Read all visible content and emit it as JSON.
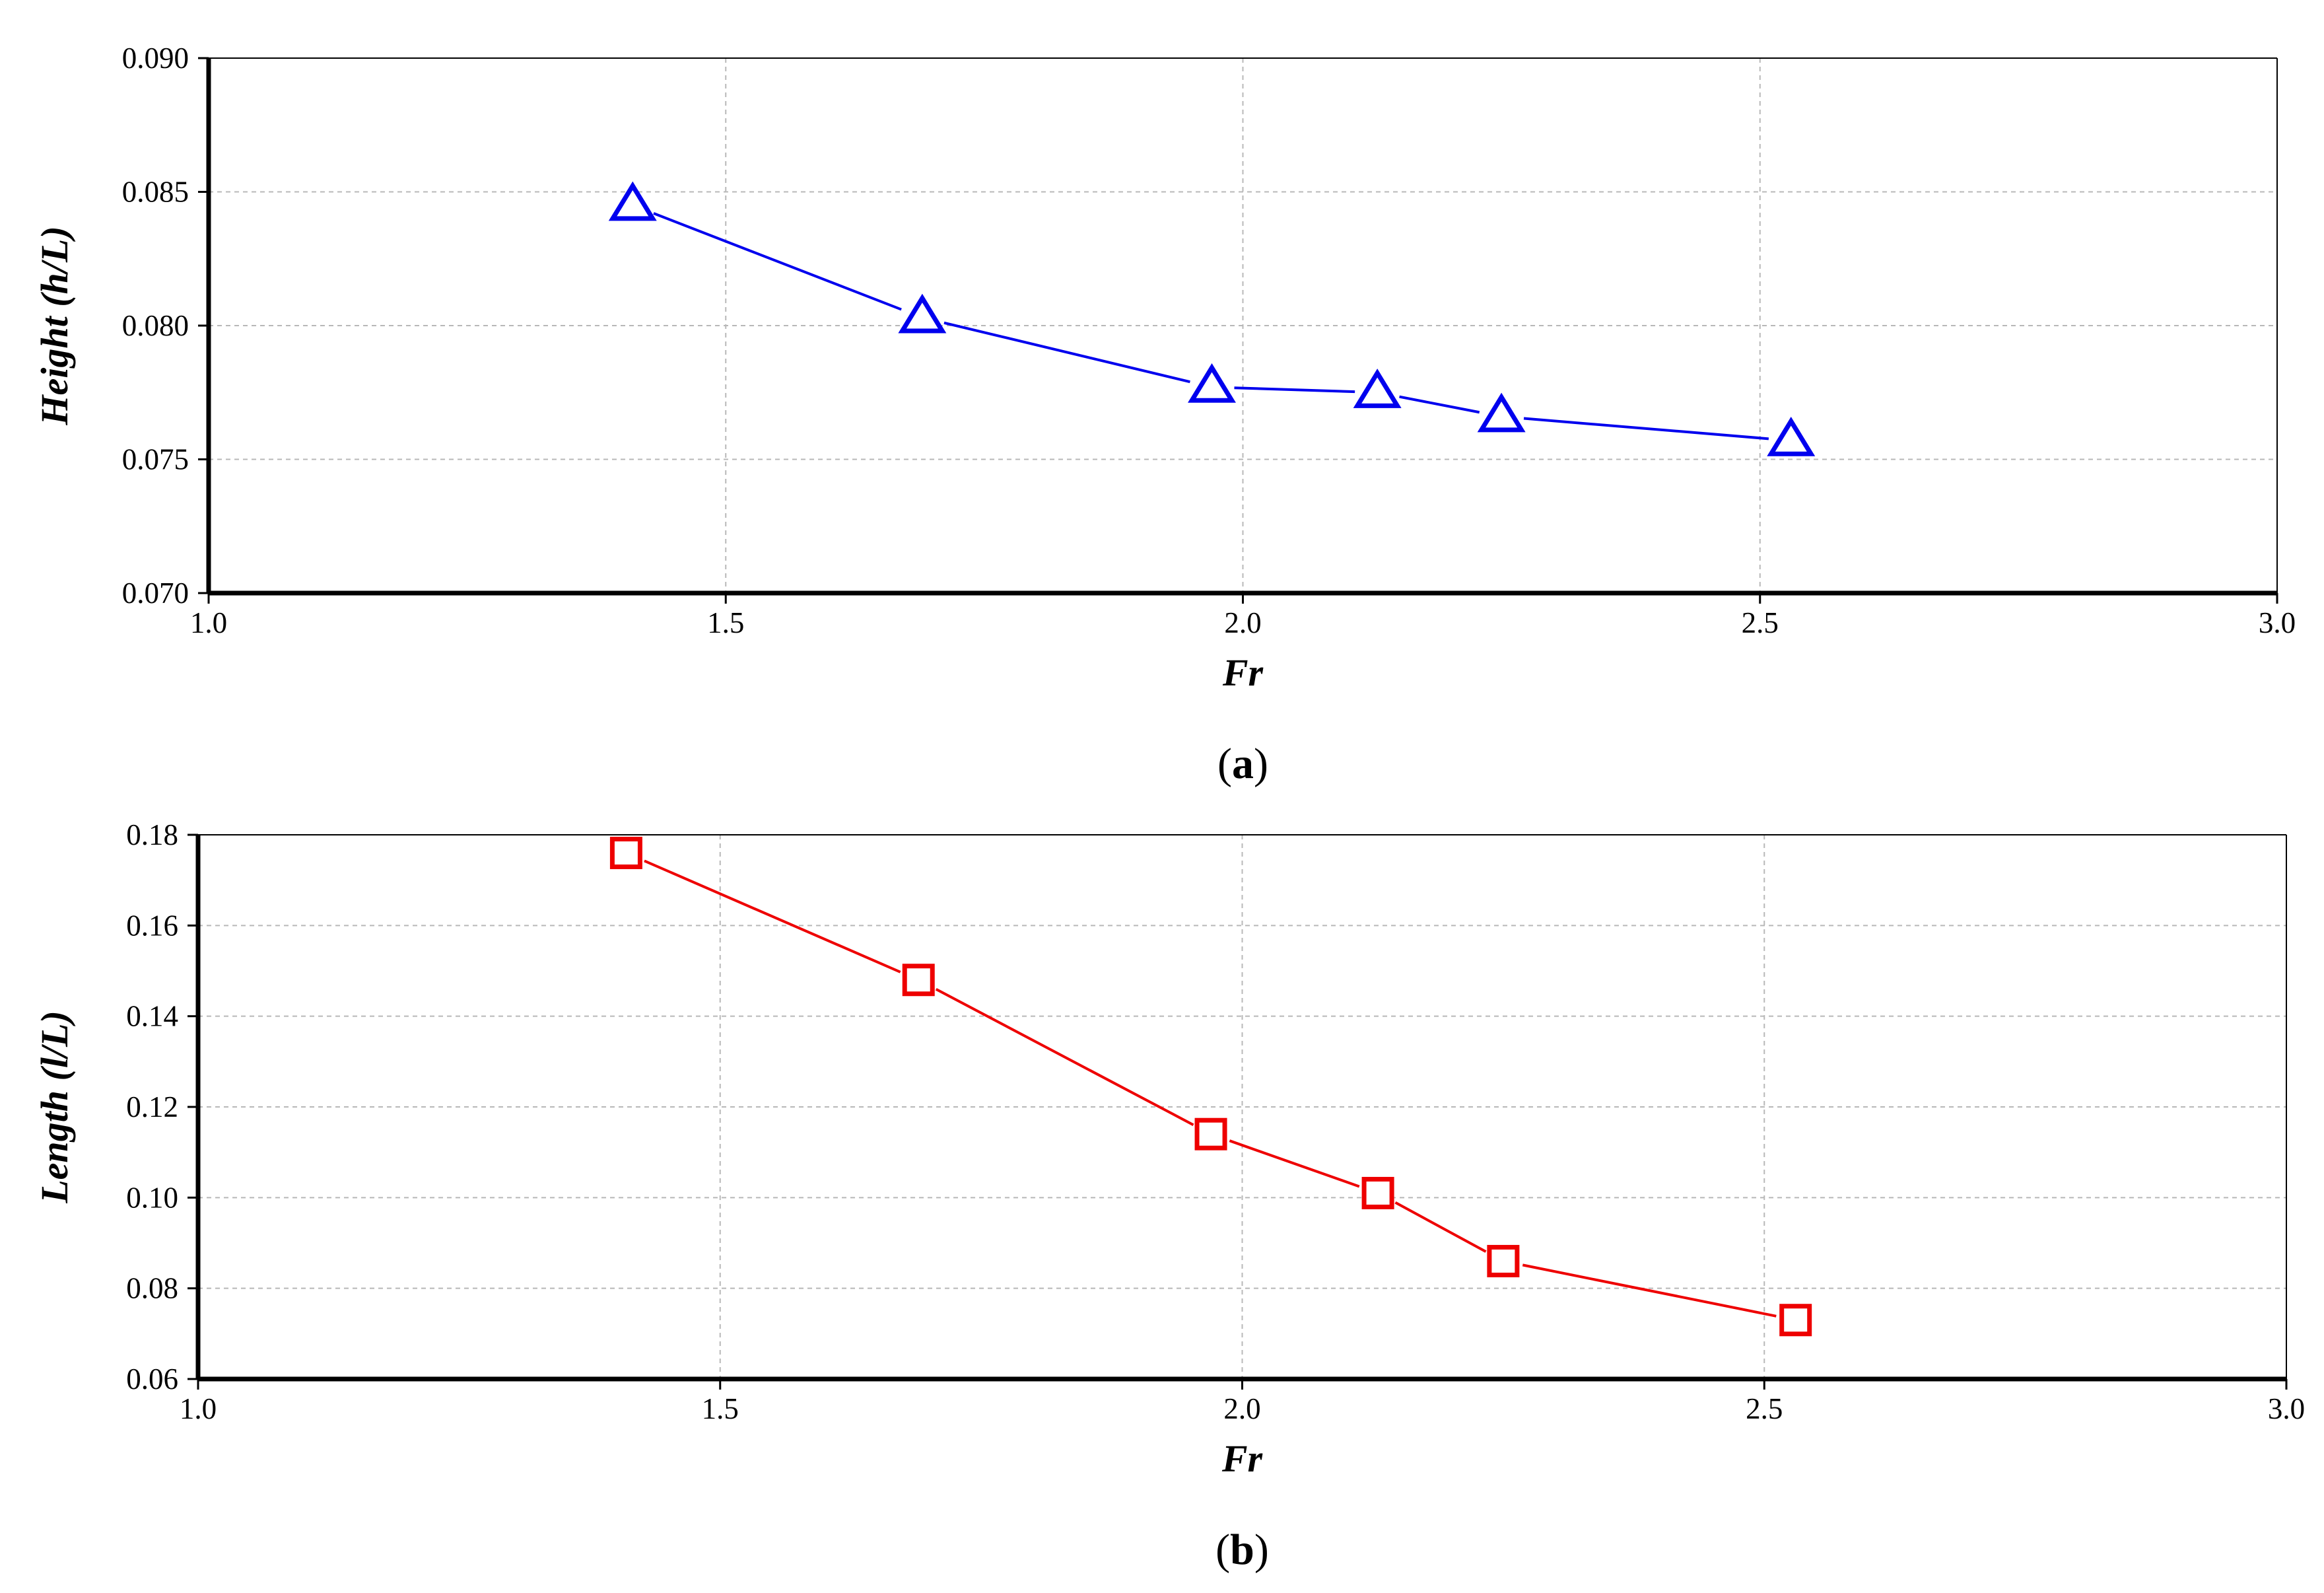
{
  "chart_data": [
    {
      "type": "line",
      "panel_label": "a",
      "xlabel": "Fr",
      "ylabel": "Height (h/L)",
      "xlim": [
        1.0,
        3.0
      ],
      "ylim": [
        0.07,
        0.09
      ],
      "xticks": [
        "1.0",
        "1.5",
        "2.0",
        "2.5",
        "3.0"
      ],
      "yticks": [
        "0.070",
        "0.075",
        "0.080",
        "0.085",
        "0.090"
      ],
      "grid": true,
      "series": [
        {
          "marker": "triangle",
          "color": "#0000ee",
          "x": [
            1.41,
            1.69,
            1.97,
            2.13,
            2.25,
            2.53
          ],
          "y": [
            0.0845,
            0.0803,
            0.0777,
            0.0775,
            0.0766,
            0.0757
          ]
        }
      ]
    },
    {
      "type": "line",
      "panel_label": "b",
      "xlabel": "Fr",
      "ylabel": "Length (l/L)",
      "xlim": [
        1.0,
        3.0
      ],
      "ylim": [
        0.06,
        0.18
      ],
      "xticks": [
        "1.0",
        "1.5",
        "2.0",
        "2.5",
        "3.0"
      ],
      "yticks": [
        "0.06",
        "0.08",
        "0.10",
        "0.12",
        "0.14",
        "0.16",
        "0.18"
      ],
      "grid": true,
      "series": [
        {
          "marker": "square",
          "color": "#ee0000",
          "x": [
            1.41,
            1.69,
            1.97,
            2.13,
            2.25,
            2.53
          ],
          "y": [
            0.176,
            0.148,
            0.114,
            0.101,
            0.086,
            0.073
          ]
        }
      ]
    }
  ]
}
